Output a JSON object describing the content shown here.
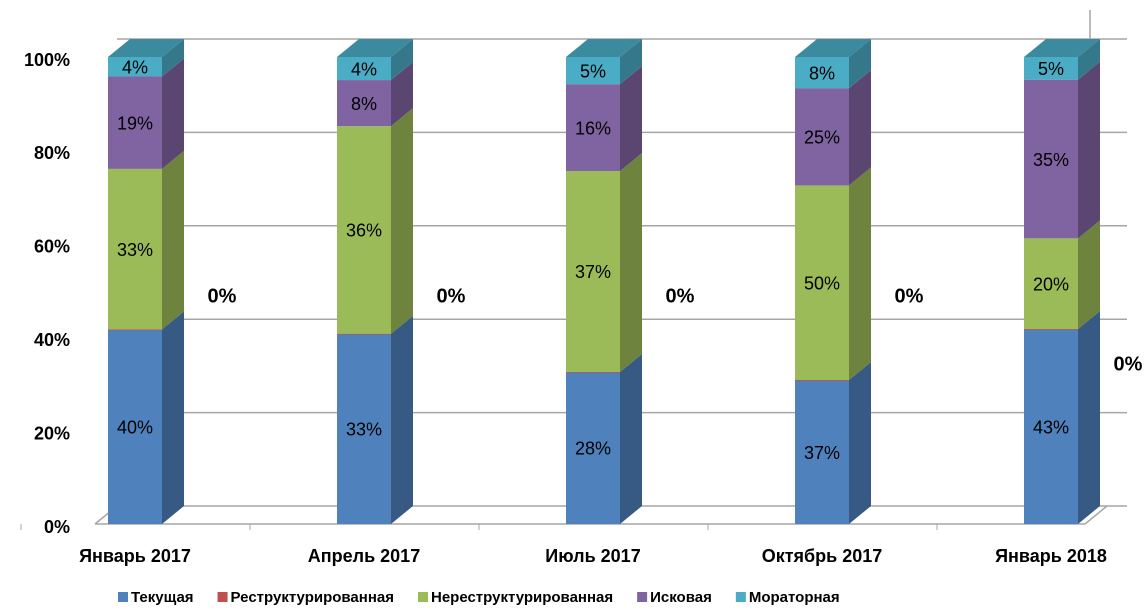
{
  "chart_data": {
    "type": "bar3d",
    "stacked": "percent",
    "categories": [
      "Январь 2017",
      "Апрель 2017",
      "Июль 2017",
      "Октябрь 2017",
      "Январь 2018"
    ],
    "series": [
      {
        "name": "Текущая",
        "color": "#4f81bd",
        "values": [
          40,
          33,
          28,
          37,
          43
        ],
        "value_labels": [
          "40%",
          "33%",
          "28%",
          "37%",
          "43%"
        ]
      },
      {
        "name": "Реструктурированная",
        "color": "#c0504d",
        "values": [
          0,
          0,
          0,
          0,
          0
        ],
        "value_labels": [
          "0%",
          "0%",
          "0%",
          "0%",
          "0%"
        ]
      },
      {
        "name": "Нереструктурированная",
        "color": "#9bbb59",
        "values": [
          33,
          36,
          37,
          50,
          20
        ],
        "value_labels": [
          "33%",
          "36%",
          "37%",
          "50%",
          "20%"
        ]
      },
      {
        "name": "Исковая",
        "color": "#8064a2",
        "values": [
          19,
          8,
          16,
          25,
          35
        ],
        "value_labels": [
          "19%",
          "8%",
          "16%",
          "25%",
          "35%"
        ]
      },
      {
        "name": "Мораторная",
        "color": "#4bacc6",
        "values": [
          4,
          4,
          5,
          8,
          5
        ],
        "value_labels": [
          "4%",
          "4%",
          "5%",
          "8%",
          "5%"
        ]
      }
    ],
    "ylim": [
      0,
      100
    ],
    "yticks": [
      {
        "value": 0,
        "label": "0%"
      },
      {
        "value": 20,
        "label": "20%"
      },
      {
        "value": 40,
        "label": "40%"
      },
      {
        "value": 60,
        "label": "60%"
      },
      {
        "value": 80,
        "label": "80%"
      },
      {
        "value": 100,
        "label": "100%"
      }
    ],
    "grid": true,
    "legend": "bottom"
  }
}
